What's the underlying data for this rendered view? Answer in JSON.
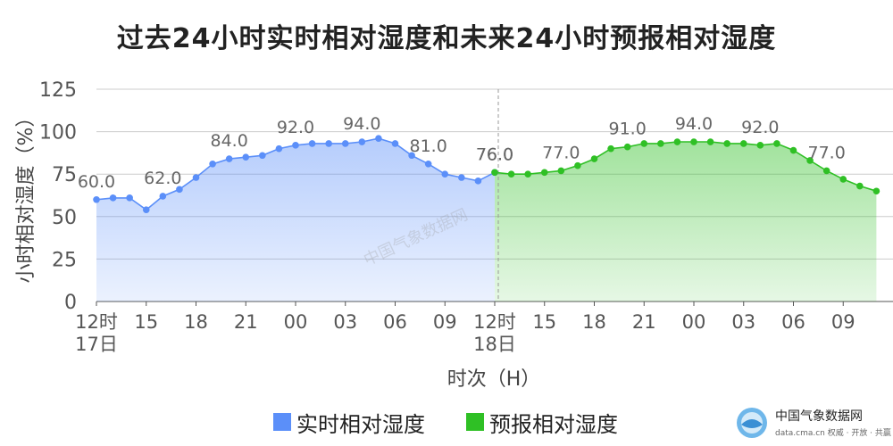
{
  "chart_data": {
    "type": "area",
    "title": "过去24小时实时相对湿度和未来24小时预报相对湿度",
    "ylabel": "小时相对湿度（%）",
    "xlabel": "时次（H）",
    "ylim": [
      0,
      125
    ],
    "yticks": [
      "0",
      "25",
      "50",
      "75",
      "100",
      "125"
    ],
    "grid": true,
    "legend_position": "bottom",
    "x_tick_labels": [
      "12时\n17日",
      "15",
      "18",
      "21",
      "00",
      "03",
      "06",
      "09",
      "12时\n18日",
      "15",
      "18",
      "21",
      "00",
      "03",
      "06",
      "09"
    ],
    "x_tick_hours": [
      0,
      3,
      6,
      9,
      12,
      15,
      18,
      21,
      24,
      27,
      30,
      33,
      36,
      39,
      42,
      45
    ],
    "series": [
      {
        "name": "实时相对湿度",
        "color": "#5B8FF9",
        "hours": [
          0,
          1,
          2,
          3,
          4,
          5,
          6,
          7,
          8,
          9,
          10,
          11,
          12,
          13,
          14,
          15,
          16,
          17,
          18,
          19,
          20,
          21,
          22,
          23,
          24
        ],
        "values": [
          60,
          61,
          61,
          54,
          62,
          66,
          73,
          81,
          84,
          85,
          86,
          90,
          92,
          93,
          93,
          93,
          94,
          96,
          93,
          86,
          81,
          75,
          73,
          71,
          76
        ],
        "data_labels": [
          {
            "hour": 0,
            "text": "60.0"
          },
          {
            "hour": 4,
            "text": "62.0"
          },
          {
            "hour": 8,
            "text": "84.0"
          },
          {
            "hour": 12,
            "text": "92.0"
          },
          {
            "hour": 16,
            "text": "94.0"
          },
          {
            "hour": 20,
            "text": "81.0"
          },
          {
            "hour": 24,
            "text": "76.0"
          }
        ]
      },
      {
        "name": "预报相对湿度",
        "color": "#2FC025",
        "hours": [
          24,
          25,
          26,
          27,
          28,
          29,
          30,
          31,
          32,
          33,
          34,
          35,
          36,
          37,
          38,
          39,
          40,
          41,
          42,
          43,
          44,
          45,
          46,
          47
        ],
        "values": [
          76,
          75,
          75,
          76,
          77,
          80,
          84,
          90,
          91,
          93,
          93,
          94,
          94,
          94,
          93,
          93,
          92,
          93,
          89,
          83,
          77,
          72,
          68,
          65
        ],
        "data_labels": [
          {
            "hour": 24,
            "text": "76.0"
          },
          {
            "hour": 28,
            "text": "77.0"
          },
          {
            "hour": 32,
            "text": "91.0"
          },
          {
            "hour": 36,
            "text": "94.0"
          },
          {
            "hour": 40,
            "text": "92.0"
          },
          {
            "hour": 44,
            "text": "77.0"
          }
        ]
      }
    ]
  },
  "legend": {
    "observed_label": "实时相对湿度",
    "forecast_label": "预报相对湿度"
  },
  "watermark": {
    "center_text": "中国气象数据网",
    "logo_title": "中国气象数据网",
    "logo_subtitle": "data.cma.cn 权威 · 开放 · 共赢"
  }
}
